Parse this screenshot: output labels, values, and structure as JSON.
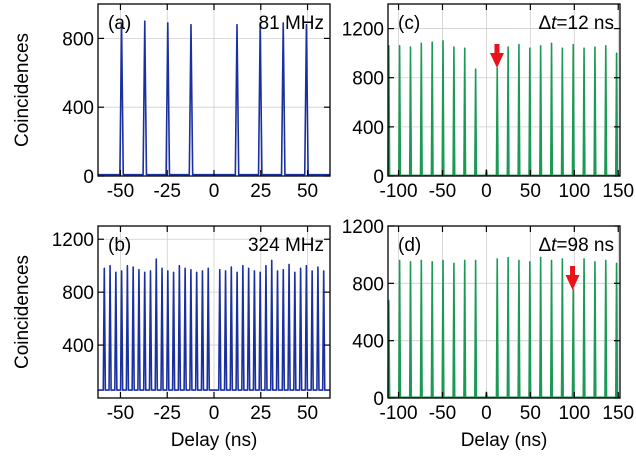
{
  "chart_data": [
    {
      "panel": "(a)",
      "type": "line",
      "annotation": "81 MHz",
      "annotation_italic": "",
      "ylabel": "Coincidences",
      "xlabel": "",
      "xlim": [
        -62,
        62
      ],
      "ylim": [
        0,
        1000
      ],
      "xticks": [
        -50,
        -25,
        0,
        25,
        50
      ],
      "yticks": [
        0,
        400,
        800
      ],
      "grid": true,
      "color": "#1a2fa0",
      "series": [
        {
          "peaks_x": [
            -49.4,
            -37.0,
            -24.7,
            -12.3,
            12.3,
            24.7,
            37.0,
            49.4
          ],
          "peaks_y": [
            880,
            900,
            890,
            880,
            880,
            890,
            890,
            880
          ],
          "baseline": 8,
          "peak_halfwidth": 0.9
        }
      ]
    },
    {
      "panel": "(c)",
      "type": "line",
      "annotation": "=12 ns",
      "annotation_prefix": "Δ",
      "annotation_italic": "t",
      "ylabel": "",
      "xlabel": "",
      "xlim": [
        -112,
        152
      ],
      "ylim": [
        0,
        1400
      ],
      "xticks": [
        -100,
        -50,
        0,
        50,
        100,
        150
      ],
      "yticks": [
        0,
        400,
        800,
        1200
      ],
      "grid": true,
      "color": "#1a9a55",
      "arrow_x": 12,
      "series": [
        {
          "peaks_x": [
            -111.1,
            -98.8,
            -86.4,
            -74.1,
            -61.7,
            -49.4,
            -37.0,
            -24.7,
            -12.3,
            0,
            12.3,
            24.7,
            37.0,
            49.4,
            61.7,
            74.1,
            86.4,
            98.8,
            111.1,
            123.5,
            135.8,
            148.1
          ],
          "peaks_y": [
            1060,
            1060,
            1050,
            1080,
            1090,
            1100,
            1050,
            1040,
            870,
            50,
            880,
            1050,
            1070,
            1040,
            1060,
            1080,
            1040,
            1070,
            1040,
            1050,
            1060,
            1000
          ],
          "baseline": 5,
          "peak_halfwidth": 0.9
        }
      ]
    },
    {
      "panel": "(b)",
      "type": "line",
      "annotation": "324 MHz",
      "annotation_italic": "",
      "ylabel": "Coincidences",
      "xlabel": "Delay (ns)",
      "xlim": [
        -62,
        62
      ],
      "ylim": [
        0,
        1300
      ],
      "xticks": [
        -50,
        -25,
        0,
        25,
        50
      ],
      "yticks": [
        400,
        800,
        1200
      ],
      "grid": true,
      "color": "#1a2fa0",
      "series": [
        {
          "period": 3.086,
          "count_each_side": 19,
          "peaks_y_left": [
            980,
            1000,
            950,
            960,
            1000,
            990,
            970,
            950,
            960,
            1050,
            980,
            960,
            950,
            1000,
            980,
            970,
            950,
            960,
            980
          ],
          "peaks_y_right": [
            970,
            960,
            990,
            950,
            1000,
            980,
            960,
            950,
            1000,
            1040,
            960,
            970,
            1010,
            950,
            980,
            1000,
            960,
            990,
            960
          ],
          "center_y": 60,
          "baseline": 60,
          "peak_halfwidth": 0.55
        }
      ]
    },
    {
      "panel": "(d)",
      "type": "line",
      "annotation": "=98 ns",
      "annotation_prefix": "Δ",
      "annotation_italic": "t",
      "ylabel": "",
      "xlabel": "Delay (ns)",
      "xlim": [
        -112,
        152
      ],
      "ylim": [
        0,
        1200
      ],
      "xticks": [
        -100,
        -50,
        0,
        50,
        100,
        150
      ],
      "yticks": [
        0,
        400,
        800,
        1200
      ],
      "grid": true,
      "color": "#1a9a55",
      "arrow_x": 98,
      "series": [
        {
          "peaks_x": [
            -111.1,
            -98.8,
            -86.4,
            -74.1,
            -61.7,
            -49.4,
            -37.0,
            -24.7,
            -12.3,
            0,
            12.3,
            24.7,
            37.0,
            49.4,
            61.7,
            74.1,
            86.4,
            98.8,
            111.1,
            123.5,
            135.8,
            148.1
          ],
          "peaks_y": [
            680,
            960,
            950,
            960,
            950,
            960,
            940,
            960,
            960,
            40,
            970,
            980,
            960,
            950,
            980,
            960,
            970,
            760,
            970,
            950,
            960,
            940
          ],
          "baseline": 5,
          "peak_halfwidth": 0.9
        }
      ]
    }
  ]
}
